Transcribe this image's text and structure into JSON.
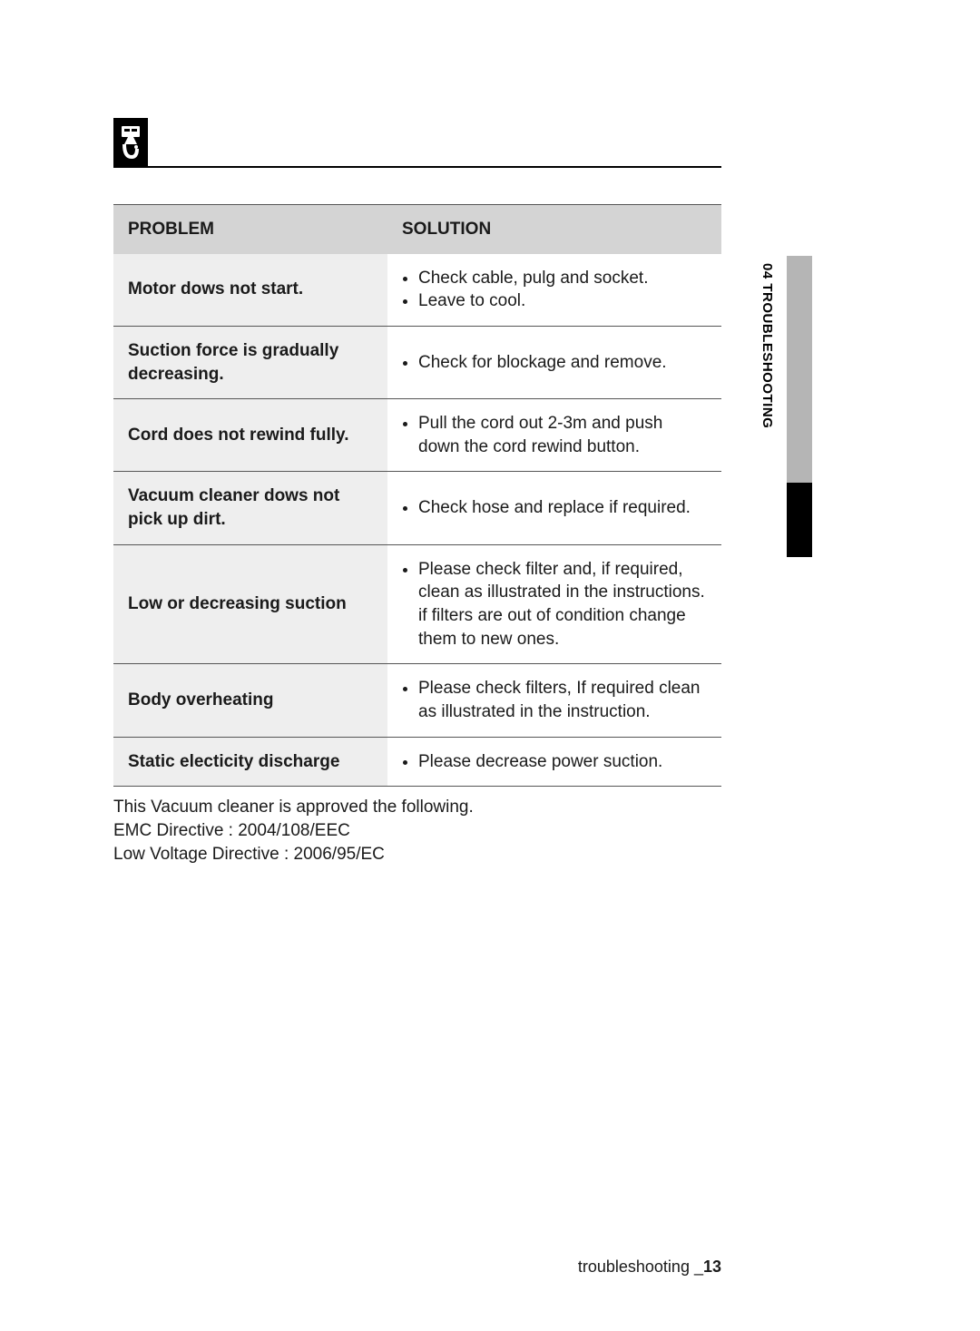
{
  "section": {
    "side_label": "04   TROUBLESHOOTING"
  },
  "table": {
    "columns": [
      "PROBLEM",
      "SOLUTION"
    ],
    "rows": [
      {
        "problem": "Motor dows not start.",
        "solutions": [
          "Check cable, pulg and socket.",
          "Leave to cool."
        ]
      },
      {
        "problem": "Suction force is gradually decreasing.",
        "solutions": [
          "Check for blockage and remove."
        ]
      },
      {
        "problem": "Cord does not rewind fully.",
        "solutions": [
          "Pull the cord out 2-3m and push down the cord rewind button."
        ]
      },
      {
        "problem": "Vacuum cleaner dows not pick up dirt.",
        "solutions": [
          "Check hose and replace if required."
        ]
      },
      {
        "problem": "Low or decreasing suction",
        "solutions": [
          "Please check filter and, if required, clean as illustrated in the instructions. if filters are out of condition change them to new ones."
        ]
      },
      {
        "problem": "Body overheating",
        "solutions": [
          "Please check filters, If required clean as illustrated in the instruction."
        ]
      },
      {
        "problem": "Static electicity discharge",
        "solutions": [
          "Please decrease power suction."
        ]
      }
    ]
  },
  "notes": [
    "This Vacuum cleaner is approved the following.",
    "EMC Directive : 2004/108/EEC",
    "Low Voltage Directive : 2006/95/EC"
  ],
  "footer": {
    "label": "troubleshooting _",
    "page": "13"
  },
  "colors": {
    "header_bg": "#d4d4d4",
    "problem_bg": "#eeeeee",
    "border": "#555555",
    "side_gray": "#b5b5b5",
    "side_black": "#000000"
  }
}
